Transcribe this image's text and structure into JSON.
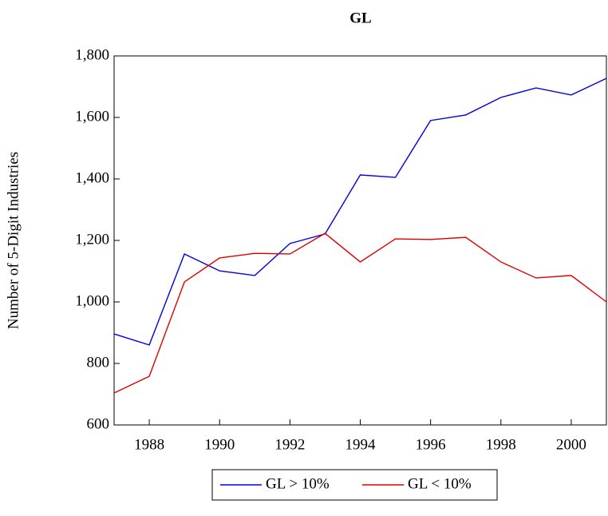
{
  "chart_data": {
    "type": "line",
    "title": "GL",
    "y_label": "Number of 5-Digit Industries",
    "x": [
      1987,
      1988,
      1989,
      1990,
      1991,
      1992,
      1993,
      1994,
      1995,
      1996,
      1997,
      1998,
      1999,
      2000,
      2001
    ],
    "series": [
      {
        "name": "GL > 10%",
        "color": "#0000dd",
        "values": [
          896,
          860,
          1156,
          1101,
          1086,
          1190,
          1221,
          1413,
          1405,
          1590,
          1608,
          1665,
          1696,
          1673,
          1727
        ]
      },
      {
        "name": "GL < 10%",
        "color": "#e00000",
        "values": [
          704,
          758,
          1065,
          1143,
          1158,
          1156,
          1223,
          1130,
          1205,
          1203,
          1210,
          1130,
          1078,
          1086,
          1000
        ]
      }
    ],
    "xlim": [
      1987,
      2001
    ],
    "xticks": [
      1988,
      1990,
      1992,
      1994,
      1996,
      1998,
      2000
    ],
    "ylim": [
      600,
      1800
    ],
    "yticks": [
      {
        "value": 600,
        "label": "600"
      },
      {
        "value": 800,
        "label": "800"
      },
      {
        "value": 1000,
        "label": "1,000"
      },
      {
        "value": 1200,
        "label": "1,200"
      },
      {
        "value": 1400,
        "label": "1,400"
      },
      {
        "value": 1600,
        "label": "1,600"
      },
      {
        "value": 1800,
        "label": "1,800"
      }
    ],
    "legend": "bottom"
  }
}
